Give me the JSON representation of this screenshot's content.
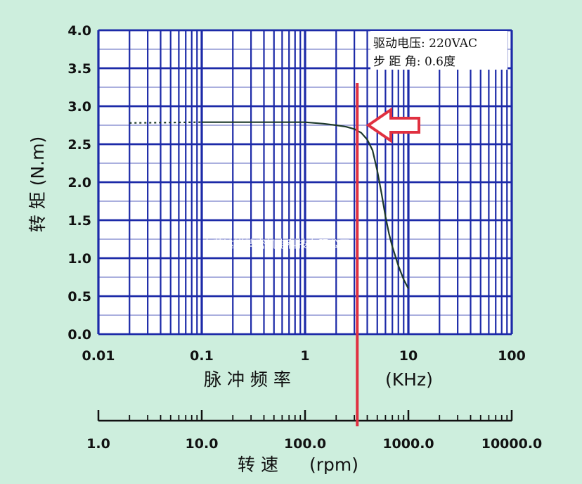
{
  "chart_data": {
    "type": "line",
    "x_scale": "log",
    "xlim": [
      0.01,
      100
    ],
    "ylim": [
      0,
      4.0
    ],
    "grid": true,
    "ylabel": "转 矩 (N.m)",
    "xlabel": "脉 冲 频 率",
    "xlabel_unit": "(KHz)",
    "x_tick_labels": [
      "0.01",
      "0.1",
      "1",
      "10",
      "100"
    ],
    "y_tick_labels": [
      "0.0",
      "0.5",
      "1.0",
      "1.5",
      "2.0",
      "2.5",
      "3.0",
      "3.5",
      "4.0"
    ],
    "secondary_axis": {
      "label": "转 速",
      "unit": "(rpm)",
      "scale": "log",
      "range": [
        1.0,
        10000.0
      ],
      "tick_labels": [
        "1.0",
        "10.0",
        "100.0",
        "1000.0",
        "10000.0"
      ]
    },
    "legend": {
      "position": "top-right",
      "lines": [
        "驱动电压: 220VAC",
        "步 距 角: 0.6度"
      ]
    },
    "series": [
      {
        "style": "dotted",
        "x": [
          0.02,
          0.1
        ],
        "y": [
          2.78,
          2.79
        ]
      },
      {
        "style": "solid",
        "x": [
          0.1,
          0.5,
          1.0,
          1.5,
          2.0,
          2.5,
          3.0,
          3.5,
          4.0,
          4.5,
          5.0,
          5.5,
          6.0,
          6.5,
          7.0,
          8.0,
          9.0,
          10.0
        ],
        "y": [
          2.79,
          2.79,
          2.79,
          2.77,
          2.75,
          2.73,
          2.7,
          2.65,
          2.56,
          2.42,
          2.15,
          1.85,
          1.55,
          1.32,
          1.15,
          0.9,
          0.72,
          0.6
        ]
      }
    ],
    "marker_line_x": 3.2,
    "arrow_target": {
      "x": 4.5,
      "y": 2.75
    }
  },
  "watermark_text": "东莞达锐精密机电科技有限公司",
  "colors": {
    "background": "#cdeedd",
    "plot_background": "#ffffff",
    "grid": "#1c2aa8",
    "curve": "#1e3a2a",
    "marker_line": "#e03040",
    "arrow": "#e03040"
  }
}
